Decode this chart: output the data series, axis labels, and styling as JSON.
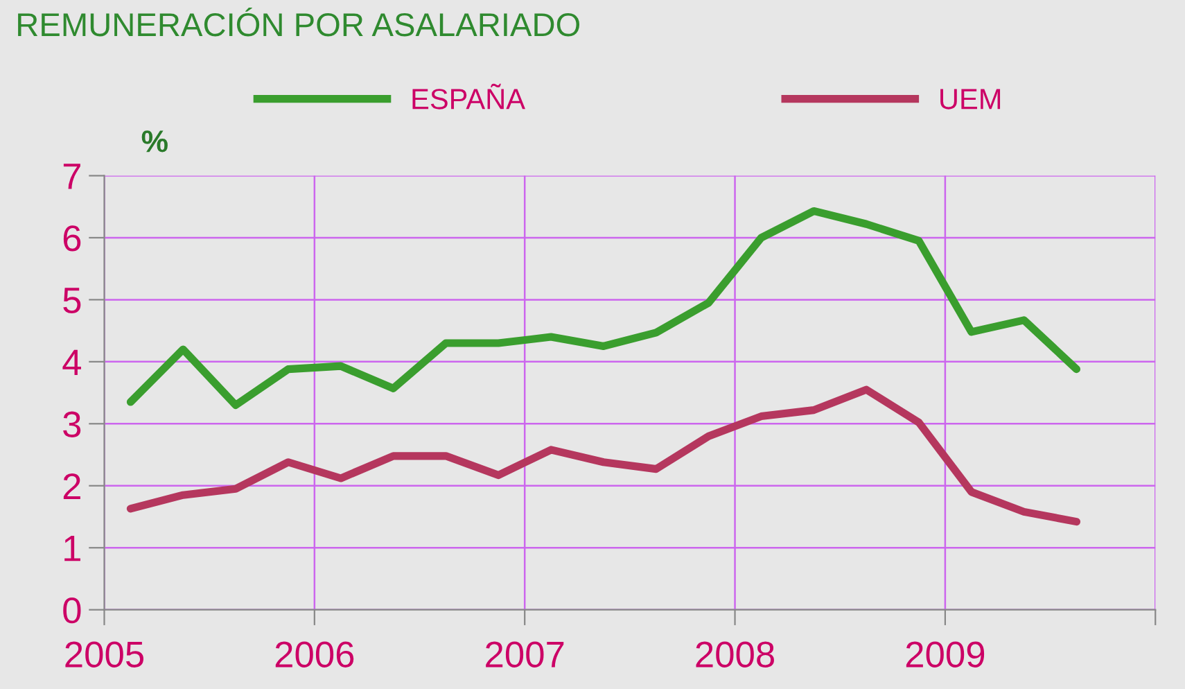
{
  "chart_data": {
    "type": "line",
    "title": "REMUNERACIÓN POR ASALARIADO",
    "ylabel": "%",
    "x": [
      2005.125,
      2005.375,
      2005.625,
      2005.875,
      2006.125,
      2006.375,
      2006.625,
      2006.875,
      2007.125,
      2007.375,
      2007.625,
      2007.875,
      2008.125,
      2008.375,
      2008.625,
      2008.875,
      2009.125,
      2009.375,
      2009.625
    ],
    "series": [
      {
        "name": "ESPAÑA",
        "color": "#3a9e2e",
        "values": [
          3.35,
          4.2,
          3.3,
          3.88,
          3.93,
          3.57,
          4.3,
          4.3,
          4.4,
          4.25,
          4.47,
          4.95,
          6.0,
          6.43,
          6.22,
          5.95,
          4.48,
          4.67,
          3.88
        ]
      },
      {
        "name": "UEM",
        "color": "#b5375e",
        "values": [
          1.63,
          1.85,
          1.95,
          2.38,
          2.12,
          2.48,
          2.48,
          2.17,
          2.58,
          2.38,
          2.27,
          2.8,
          3.12,
          3.22,
          3.55,
          3.02,
          1.9,
          1.58,
          1.42
        ]
      }
    ],
    "xlim": [
      2005,
      2010
    ],
    "xticks": [
      2005,
      2006,
      2007,
      2008,
      2009,
      {
        "value": 2010,
        "label": null
      }
    ],
    "ylim": [
      0,
      7
    ],
    "yticks": [
      0,
      1,
      2,
      3,
      4,
      5,
      6,
      7
    ],
    "grid": true,
    "legend": "top",
    "marker": "none",
    "line_style": "solid"
  }
}
